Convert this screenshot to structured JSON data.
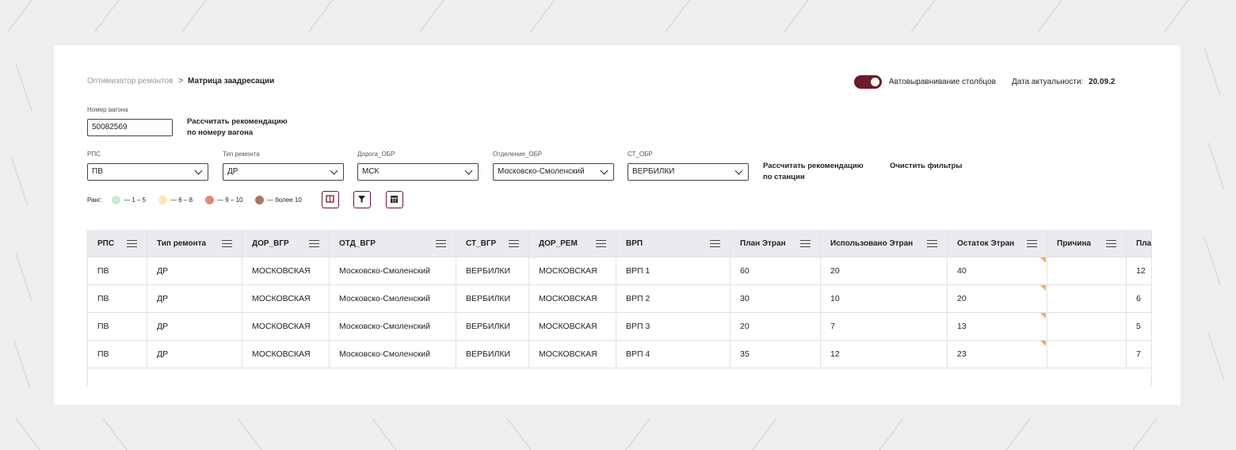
{
  "breadcrumb": {
    "parent": "Оптимизатор ремонтов",
    "current": "Матрица заадресации"
  },
  "header": {
    "toggle_label": "Автовыравнивание столбцов",
    "date_label": "Дата актуальности:",
    "date_value": "20.09.2"
  },
  "wagon": {
    "label": "Номер вагона",
    "value": "50082569",
    "button": [
      "Рассчитать рекомендацию",
      "по номеру вагона"
    ]
  },
  "filters": [
    {
      "label": "РПС",
      "value": "ПВ"
    },
    {
      "label": "Тип ремонта",
      "value": "ДР"
    },
    {
      "label": "Дорога_ОБР",
      "value": "МСК"
    },
    {
      "label": "Отделение_ОБР",
      "value": "Московско-Смоленский"
    },
    {
      "label": "СТ_ОБР",
      "value": "ВЕРБИЛКИ"
    }
  ],
  "station_button": [
    "Рассчитать рекомендацию",
    "по станции"
  ],
  "clear_button": "Очистить фильтры",
  "legend": {
    "title": "Ранг:",
    "items": [
      {
        "label": "— 1 – 5",
        "color": "#c8ecd1"
      },
      {
        "label": "— 6 – 8",
        "color": "#fbe8bb"
      },
      {
        "label": "— 9 – 10",
        "color": "#df887c"
      },
      {
        "label": "— более 10",
        "color": "#a87568"
      }
    ]
  },
  "table": {
    "columns": [
      "РПС",
      "Тип ремонта",
      "ДОР_ВГР",
      "ОТД_ВГР",
      "СТ_ВГР",
      "ДОР_РЕМ",
      "ВРП",
      "План Этран",
      "Использовано Этран",
      "Остаток Этран",
      "Причина",
      "Пла"
    ],
    "rows": [
      [
        "ПВ",
        "ДР",
        "МОСКОВСКАЯ",
        "Московско-Смоленский",
        "ВЕРБИЛКИ",
        "МОСКОВСКАЯ",
        "ВРП 1",
        60,
        20,
        40,
        "",
        12
      ],
      [
        "ПВ",
        "ДР",
        "МОСКОВСКАЯ",
        "Московско-Смоленский",
        "ВЕРБИЛКИ",
        "МОСКОВСКАЯ",
        "ВРП 2",
        30,
        10,
        20,
        "",
        6
      ],
      [
        "ПВ",
        "ДР",
        "МОСКОВСКАЯ",
        "Московско-Смоленский",
        "ВЕРБИЛКИ",
        "МОСКОВСКАЯ",
        "ВРП 3",
        20,
        7,
        13,
        "",
        5
      ],
      [
        "ПВ",
        "ДР",
        "МОСКОВСКАЯ",
        "Московско-Смоленский",
        "ВЕРБИЛКИ",
        "МОСКОВСКАЯ",
        "ВРП 4",
        35,
        12,
        23,
        "",
        7
      ]
    ]
  }
}
